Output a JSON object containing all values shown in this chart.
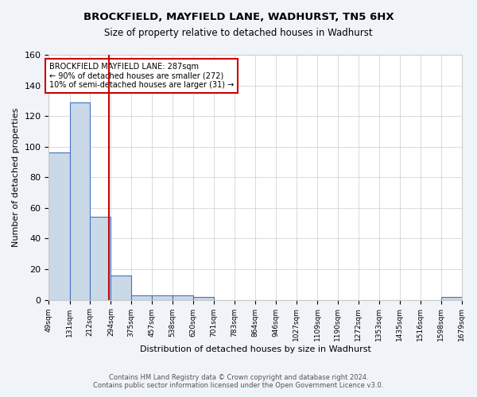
{
  "title": "BROCKFIELD, MAYFIELD LANE, WADHURST, TN5 6HX",
  "subtitle": "Size of property relative to detached houses in Wadhurst",
  "xlabel": "Distribution of detached houses by size in Wadhurst",
  "ylabel": "Number of detached properties",
  "bin_edges": [
    49,
    131,
    212,
    294,
    375,
    457,
    538,
    620,
    701,
    783,
    864,
    946,
    1027,
    1109,
    1190,
    1272,
    1353,
    1435,
    1516,
    1598,
    1679
  ],
  "bar_heights": [
    96,
    129,
    54,
    16,
    3,
    3,
    3,
    2,
    0,
    0,
    0,
    0,
    0,
    0,
    0,
    0,
    0,
    0,
    0,
    2
  ],
  "bar_color": "#c9d9e8",
  "bar_edge_color": "#4472c4",
  "property_value": 287,
  "vline_color": "#cc0000",
  "vline_x": 287,
  "ylim": [
    0,
    160
  ],
  "yticks": [
    0,
    20,
    40,
    60,
    80,
    100,
    120,
    140,
    160
  ],
  "annotation_box_text": "BROCKFIELD MAYFIELD LANE: 287sqm\n← 90% of detached houses are smaller (272)\n10% of semi-detached houses are larger (31) →",
  "footer_line1": "Contains HM Land Registry data © Crown copyright and database right 2024.",
  "footer_line2": "Contains public sector information licensed under the Open Government Licence v3.0.",
  "background_color": "#f0f4f8",
  "plot_background_color": "#ffffff",
  "grid_color": "#cccccc"
}
